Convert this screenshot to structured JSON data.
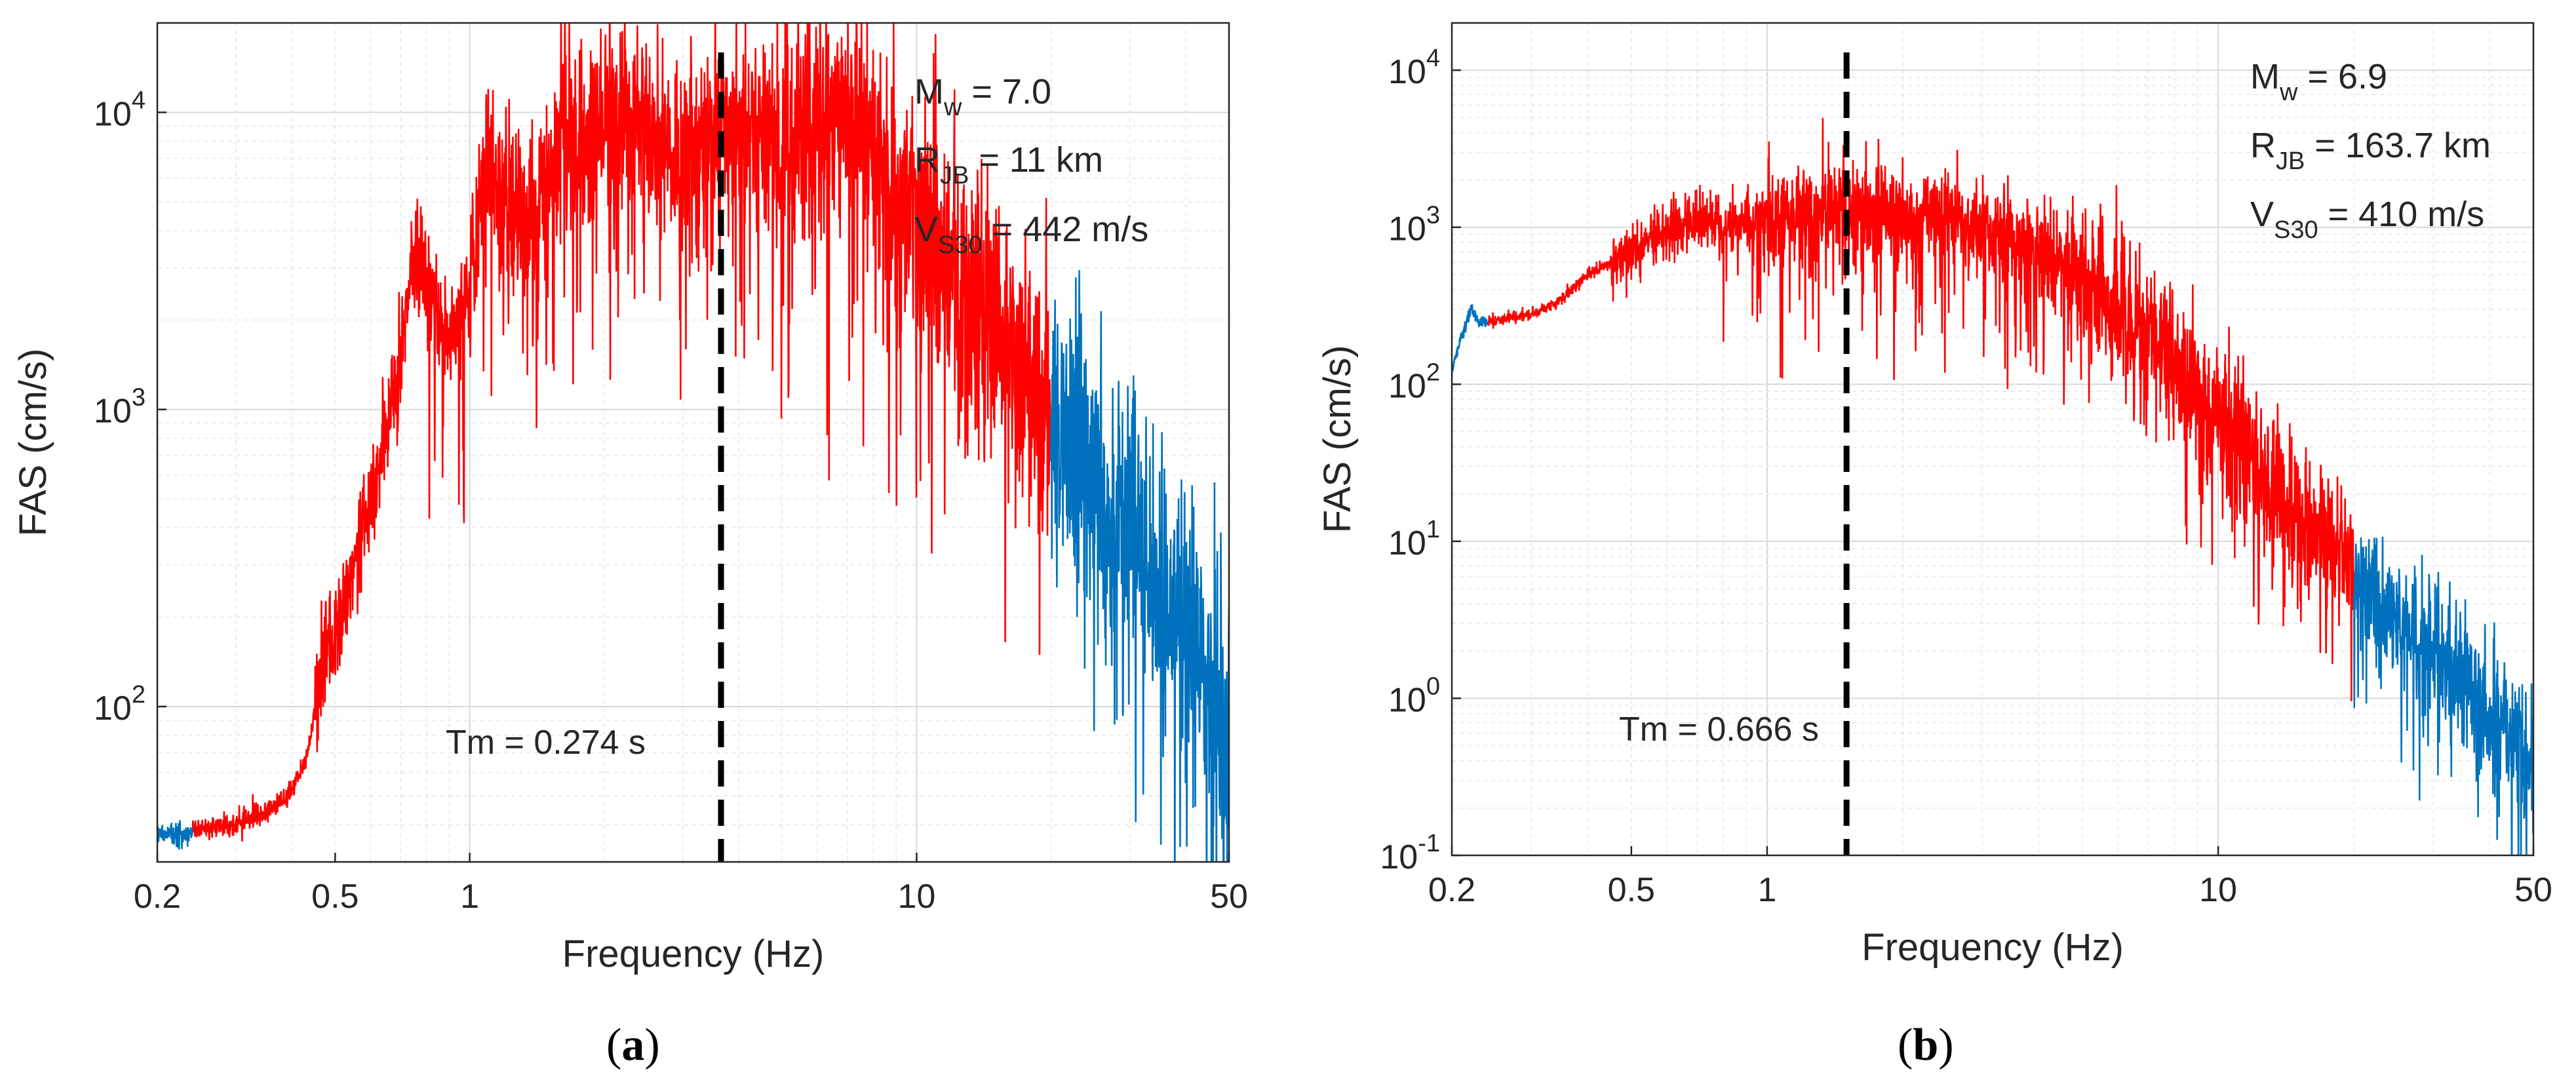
{
  "chart_data": [
    {
      "type": "line",
      "panel_label": "a",
      "xlabel": "Frequency (Hz)",
      "ylabel": "FAS (cm/s)",
      "xscale": "log",
      "yscale": "log",
      "xlim": [
        0.2,
        50
      ],
      "ylim": [
        30,
        20000
      ],
      "xticks": [
        {
          "value": 0.2,
          "label": "0.2"
        },
        {
          "value": 0.5,
          "label": "0.5"
        },
        {
          "value": 1,
          "label": "1"
        },
        {
          "value": 10,
          "label": "10"
        },
        {
          "value": 50,
          "label": "50"
        }
      ],
      "yticks": [
        {
          "value": 100,
          "base": "10",
          "exp": "2"
        },
        {
          "value": 1000,
          "base": "10",
          "exp": "3"
        },
        {
          "value": 10000,
          "base": "10",
          "exp": "4"
        }
      ],
      "grid": true,
      "annotations": {
        "mw": {
          "main": "M",
          "sub": "w",
          "rest": " = 7.0"
        },
        "rjb": {
          "main": "R",
          "sub": "JB",
          "rest": " = 11 km"
        },
        "vs30": {
          "main": "V",
          "sub": "S30",
          "rest": " = 442 m/s"
        }
      },
      "tm": {
        "label": "Tm = 0.274 s",
        "frequency": 3.65
      },
      "band": {
        "low": 0.24,
        "high": 20
      },
      "series": [
        {
          "name": "usable band",
          "color": "#ff0000",
          "x": [
            0.24,
            0.3,
            0.35,
            0.4,
            0.43,
            0.47,
            0.5,
            0.55,
            0.6,
            0.65,
            0.7,
            0.75,
            0.8,
            0.9,
            1.0,
            1.1,
            1.2,
            1.4,
            1.6,
            1.8,
            2.0,
            2.3,
            2.6,
            3.0,
            3.5,
            4.0,
            5.0,
            6.0,
            7.0,
            8.0,
            10,
            12,
            15,
            18,
            20
          ],
          "y": [
            38,
            40,
            44,
            52,
            65,
            150,
            170,
            300,
            500,
            800,
            1500,
            3500,
            2500,
            1800,
            2500,
            6500,
            5000,
            4000,
            9000,
            7000,
            9000,
            10000,
            8000,
            7000,
            8500,
            9000,
            8000,
            9000,
            11000,
            7000,
            4500,
            3000,
            2200,
            1200,
            900
          ]
        },
        {
          "name": "outside band",
          "color": "#0072bd",
          "x": [
            0.2,
            0.24,
            20,
            25,
            30,
            35,
            40,
            45,
            50
          ],
          "y": [
            37,
            38,
            900,
            600,
            400,
            250,
            180,
            130,
            100
          ]
        }
      ]
    },
    {
      "type": "line",
      "panel_label": "b",
      "xlabel": "Frequency (Hz)",
      "ylabel": "FAS (cm/s)",
      "xscale": "log",
      "yscale": "log",
      "xlim": [
        0.2,
        50
      ],
      "ylim": [
        0.1,
        20000
      ],
      "xticks": [
        {
          "value": 0.2,
          "label": "0.2"
        },
        {
          "value": 0.5,
          "label": "0.5"
        },
        {
          "value": 1,
          "label": "1"
        },
        {
          "value": 10,
          "label": "10"
        },
        {
          "value": 50,
          "label": "50"
        }
      ],
      "yticks": [
        {
          "value": 0.1,
          "base": "10",
          "exp": "-1"
        },
        {
          "value": 1,
          "base": "10",
          "exp": "0"
        },
        {
          "value": 10,
          "base": "10",
          "exp": "1"
        },
        {
          "value": 100,
          "base": "10",
          "exp": "2"
        },
        {
          "value": 1000,
          "base": "10",
          "exp": "3"
        },
        {
          "value": 10000,
          "base": "10",
          "exp": "4"
        }
      ],
      "grid": true,
      "annotations": {
        "mw": {
          "main": "M",
          "sub": "w",
          "rest": " = 6.9"
        },
        "rjb": {
          "main": "R",
          "sub": "JB",
          "rest": " = 163.7 km"
        },
        "vs30": {
          "main": "V",
          "sub": "S30",
          "rest": " = 410 m/s"
        }
      },
      "tm": {
        "label": "Tm = 0.666 s",
        "frequency": 1.5
      },
      "band": {
        "low": 0.24,
        "high": 20
      },
      "series": [
        {
          "name": "usable band",
          "color": "#ff0000",
          "x": [
            0.24,
            0.3,
            0.35,
            0.4,
            0.45,
            0.5,
            0.6,
            0.7,
            0.8,
            1.0,
            1.2,
            1.5,
            2.0,
            2.5,
            3.0,
            4.0,
            5.0,
            6.0,
            8.0,
            10,
            12,
            15,
            18,
            20
          ],
          "y": [
            250,
            280,
            350,
            500,
            600,
            700,
            1000,
            1100,
            1000,
            1200,
            1200,
            1300,
            1200,
            1100,
            1000,
            700,
            500,
            300,
            150,
            60,
            30,
            15,
            10,
            6
          ]
        },
        {
          "name": "outside band",
          "color": "#0072bd",
          "x": [
            0.2,
            0.21,
            0.22,
            0.23,
            0.24,
            20,
            25,
            30,
            35,
            40,
            45,
            50
          ],
          "y": [
            120,
            200,
            300,
            250,
            250,
            6,
            3,
            2,
            1.2,
            0.8,
            0.6,
            0.4
          ]
        }
      ]
    }
  ]
}
